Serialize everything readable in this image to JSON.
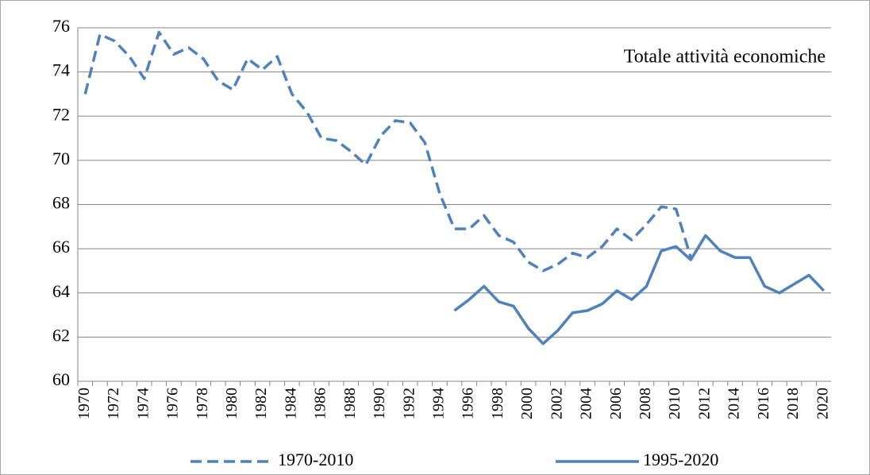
{
  "chart_data": {
    "type": "line",
    "annotation": "Totale attività economiche",
    "categories": [
      "1970",
      null,
      "1972",
      null,
      "1974",
      null,
      "1976",
      null,
      "1978",
      null,
      "1980",
      null,
      "1982",
      null,
      "1984",
      null,
      "1986",
      null,
      "1988",
      null,
      "1990",
      null,
      "1992",
      null,
      "1994",
      null,
      "1996",
      null,
      "1998",
      null,
      "2000",
      null,
      "2002",
      null,
      "2004",
      null,
      "2006",
      null,
      "2008",
      null,
      "2010",
      null,
      "2012",
      null,
      "2014",
      null,
      "2016",
      null,
      "2018",
      null,
      "2020"
    ],
    "series": [
      {
        "name": "1970-2010",
        "color": "#4f81bd",
        "dashed": true,
        "values": [
          73.0,
          75.7,
          75.4,
          74.7,
          73.7,
          75.8,
          74.8,
          75.1,
          74.6,
          73.6,
          73.2,
          74.6,
          74.1,
          74.7,
          73.0,
          72.2,
          71.0,
          70.9,
          70.4,
          69.8,
          71.1,
          71.8,
          71.7,
          70.8,
          68.5,
          66.9,
          66.9,
          67.5,
          66.6,
          66.3,
          65.4,
          65.0,
          65.3,
          65.8,
          65.6,
          66.1,
          66.9,
          66.4,
          67.1,
          67.9,
          67.8,
          65.6,
          null,
          null,
          null,
          null,
          null,
          null,
          null,
          null,
          null
        ]
      },
      {
        "name": "1995-2020",
        "color": "#4f81bd",
        "dashed": false,
        "values": [
          null,
          null,
          null,
          null,
          null,
          null,
          null,
          null,
          null,
          null,
          null,
          null,
          null,
          null,
          null,
          null,
          null,
          null,
          null,
          null,
          null,
          null,
          null,
          null,
          null,
          63.2,
          63.7,
          64.3,
          63.6,
          63.4,
          62.4,
          61.7,
          62.3,
          63.1,
          63.2,
          63.5,
          64.1,
          63.7,
          64.3,
          65.9,
          66.1,
          65.5,
          66.6,
          65.9,
          65.6,
          65.6,
          64.3,
          64.0,
          64.4,
          64.8,
          64.1
        ]
      }
    ],
    "ylim": [
      60,
      76
    ],
    "yticks": [
      60,
      62,
      64,
      66,
      68,
      70,
      72,
      74,
      76
    ],
    "grid": true
  }
}
